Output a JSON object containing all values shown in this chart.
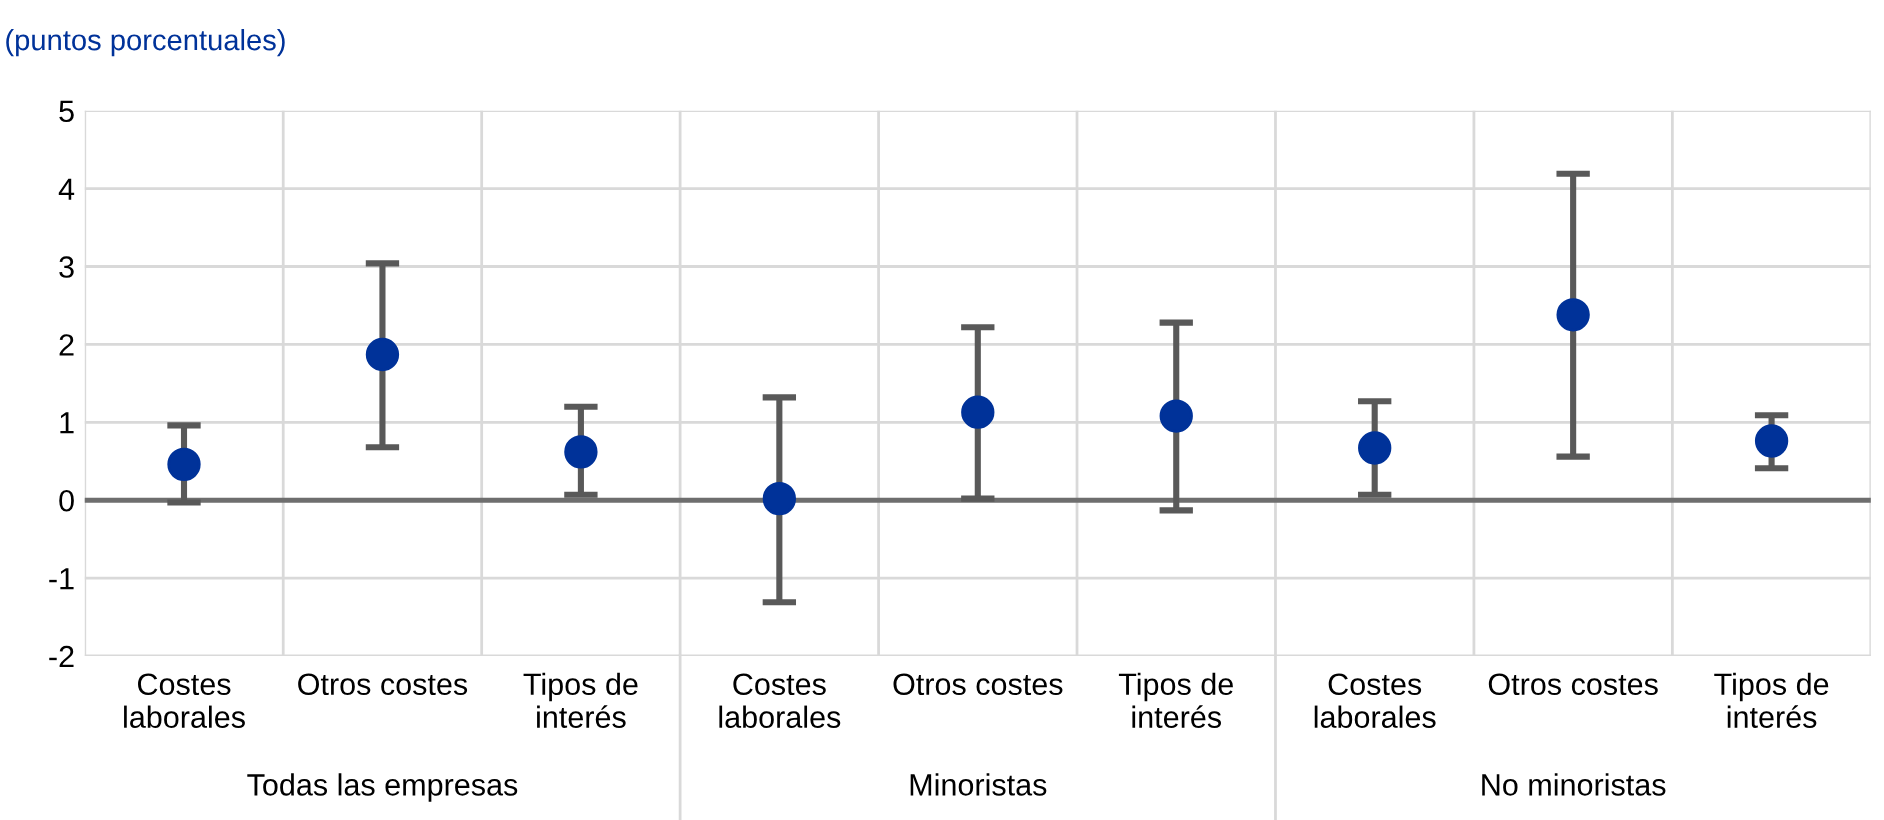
{
  "chart_data": {
    "type": "scatter",
    "ylabel": "(puntos porcentuales)",
    "categories": [
      "Costes\nlaborales",
      "Otros costes",
      "Tipos de\ninterés",
      "Costes\nlaborales",
      "Otros costes",
      "Tipos de\ninterés",
      "Costes\nlaborales",
      "Otros costes",
      "Tipos de\ninterés"
    ],
    "series": [
      {
        "color": "#003299",
        "values": [
          0.46,
          1.87,
          0.62,
          0.02,
          1.13,
          1.08,
          0.67,
          2.38,
          0.76
        ],
        "errors": [
          [
            -0.03,
            0.96
          ],
          [
            0.68,
            3.04
          ],
          [
            0.07,
            1.2
          ],
          [
            -1.31,
            1.32
          ],
          [
            0.02,
            2.22
          ],
          [
            -0.13,
            2.28
          ],
          [
            0.07,
            1.27
          ],
          [
            0.56,
            4.19
          ],
          [
            0.41,
            1.09
          ]
        ]
      }
    ],
    "annotations": [
      "Todas las empresas",
      "Minoristas",
      "No minoristas"
    ],
    "ylim": [
      -2,
      5
    ],
    "yticks": [
      -2,
      -1,
      0,
      1,
      2,
      3,
      4,
      5
    ],
    "ref_lines": [
      {
        "axis": "y",
        "value": 0,
        "color": "#6e6e6e"
      }
    ],
    "grid": true,
    "marker": "circle",
    "legend": false
  }
}
